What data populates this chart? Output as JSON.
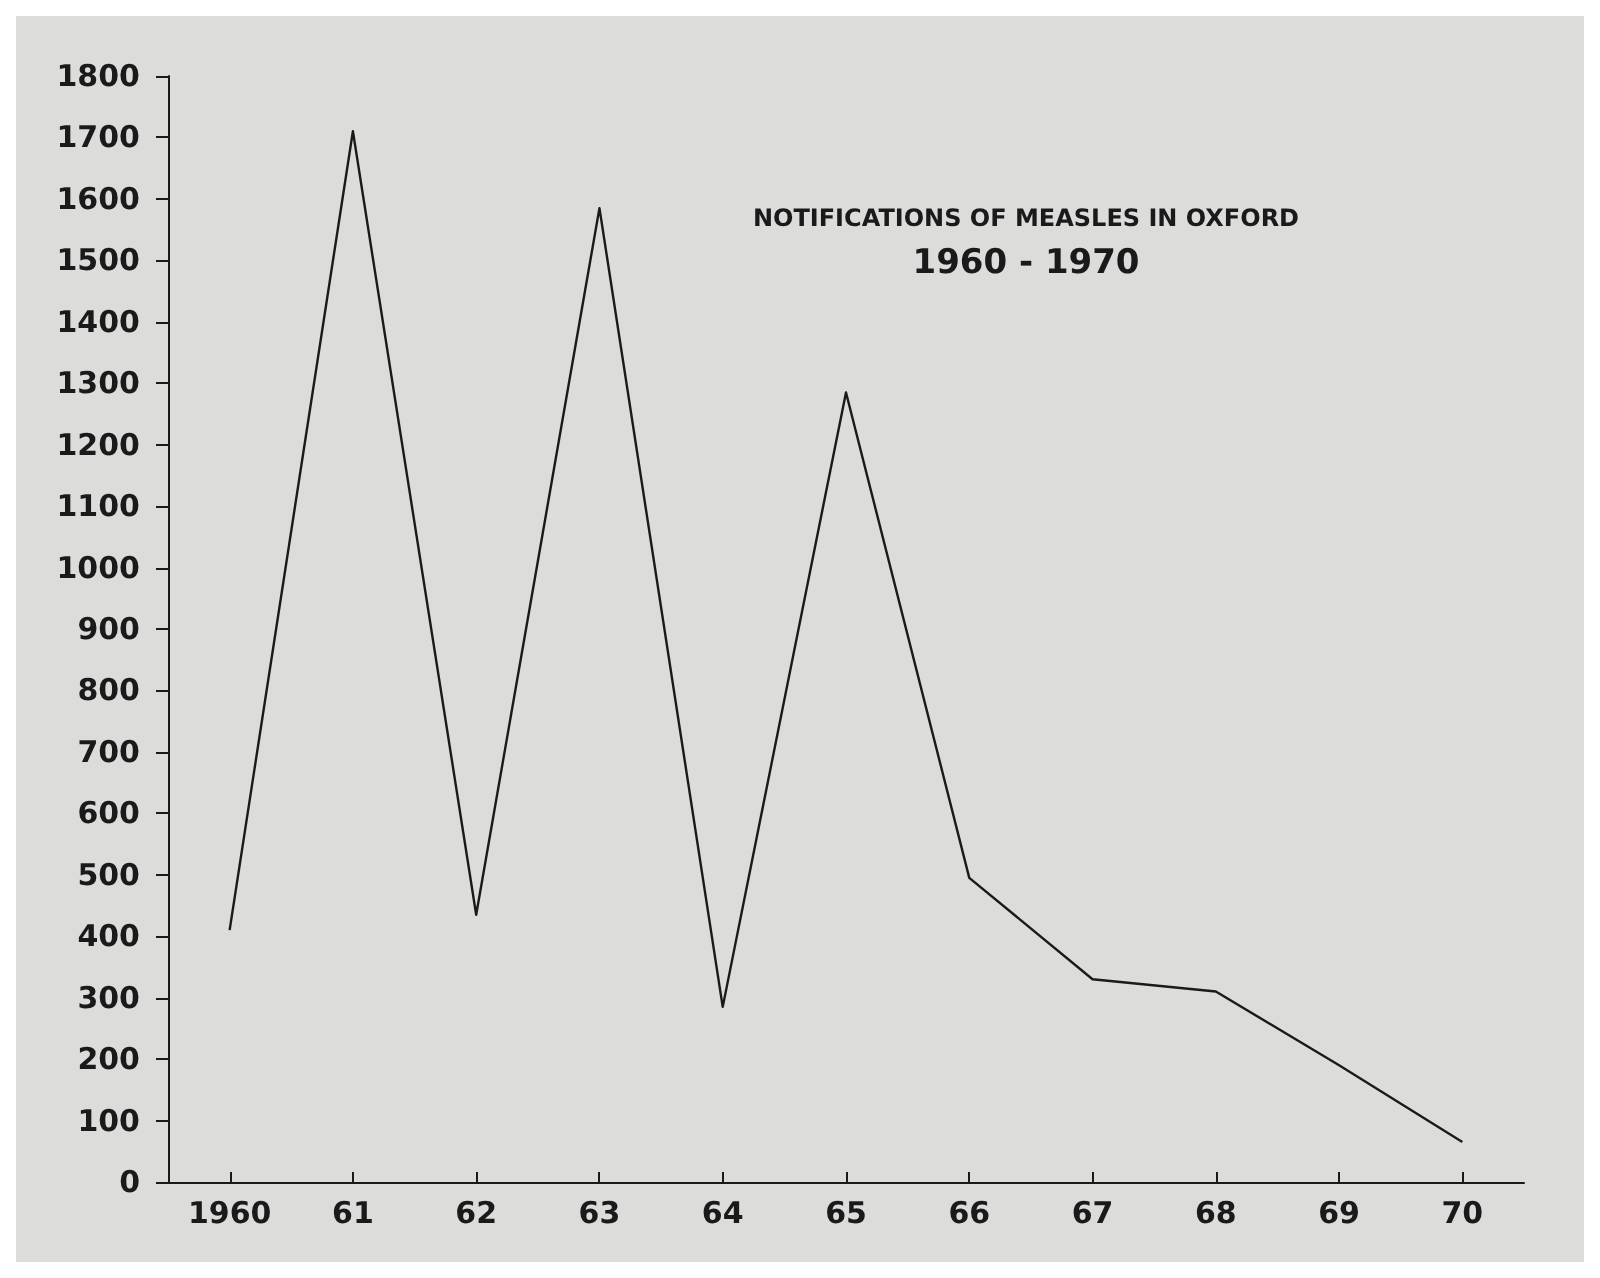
{
  "chart_data": {
    "type": "line",
    "title": "NOTIFICATIONS OF MEASLES IN OXFORD",
    "subtitle": "1960 - 1970",
    "categories": [
      "1960",
      "61",
      "62",
      "63",
      "64",
      "65",
      "66",
      "67",
      "68",
      "69",
      "70"
    ],
    "series": [
      {
        "color": "#1a1a1a",
        "values": [
          410,
          1710,
          435,
          1585,
          285,
          1285,
          495,
          330,
          310,
          190,
          65
        ]
      }
    ],
    "ylim": [
      0,
      1800
    ],
    "yticks": [
      0,
      100,
      200,
      300,
      400,
      500,
      600,
      700,
      800,
      900,
      1000,
      1100,
      1200,
      1300,
      1400,
      1500,
      1600,
      1700,
      1800
    ],
    "grid": false,
    "marker": "none",
    "line_style": "solid"
  }
}
